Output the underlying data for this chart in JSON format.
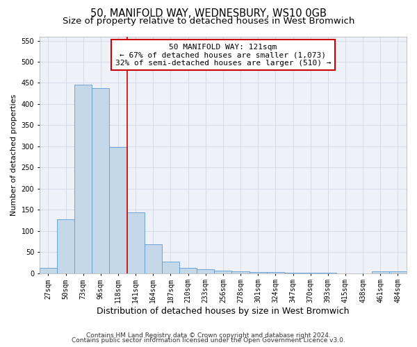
{
  "title1": "50, MANIFOLD WAY, WEDNESBURY, WS10 0GB",
  "title2": "Size of property relative to detached houses in West Bromwich",
  "xlabel": "Distribution of detached houses by size in West Bromwich",
  "ylabel": "Number of detached properties",
  "footnote1": "Contains HM Land Registry data © Crown copyright and database right 2024.",
  "footnote2": "Contains public sector information licensed under the Open Government Licence v3.0.",
  "categories": [
    "27sqm",
    "50sqm",
    "73sqm",
    "96sqm",
    "118sqm",
    "141sqm",
    "164sqm",
    "187sqm",
    "210sqm",
    "233sqm",
    "256sqm",
    "278sqm",
    "301sqm",
    "324sqm",
    "347sqm",
    "370sqm",
    "393sqm",
    "415sqm",
    "438sqm",
    "461sqm",
    "484sqm"
  ],
  "values": [
    12,
    127,
    446,
    437,
    298,
    144,
    68,
    27,
    13,
    9,
    6,
    4,
    3,
    2,
    1,
    1,
    1,
    0,
    0,
    4,
    5
  ],
  "bar_color": "#c5d8ea",
  "bar_edge_color": "#5b9bd5",
  "bar_edge_width": 0.6,
  "annotation_text": "50 MANIFOLD WAY: 121sqm",
  "annotation_line2": "← 67% of detached houses are smaller (1,073)",
  "annotation_line3": "32% of semi-detached houses are larger (510) →",
  "annotation_box_color": "#ffffff",
  "annotation_box_edge_color": "#cc0000",
  "vline_color": "#cc0000",
  "vline_x": 4.5,
  "ylim": [
    0,
    560
  ],
  "yticks": [
    0,
    50,
    100,
    150,
    200,
    250,
    300,
    350,
    400,
    450,
    500,
    550
  ],
  "grid_color": "#d0d8e8",
  "bg_color": "#eef2f8",
  "title1_fontsize": 10.5,
  "title2_fontsize": 9.5,
  "xlabel_fontsize": 9,
  "ylabel_fontsize": 8,
  "tick_fontsize": 7,
  "annotation_fontsize": 8,
  "footnote_fontsize": 6.5
}
